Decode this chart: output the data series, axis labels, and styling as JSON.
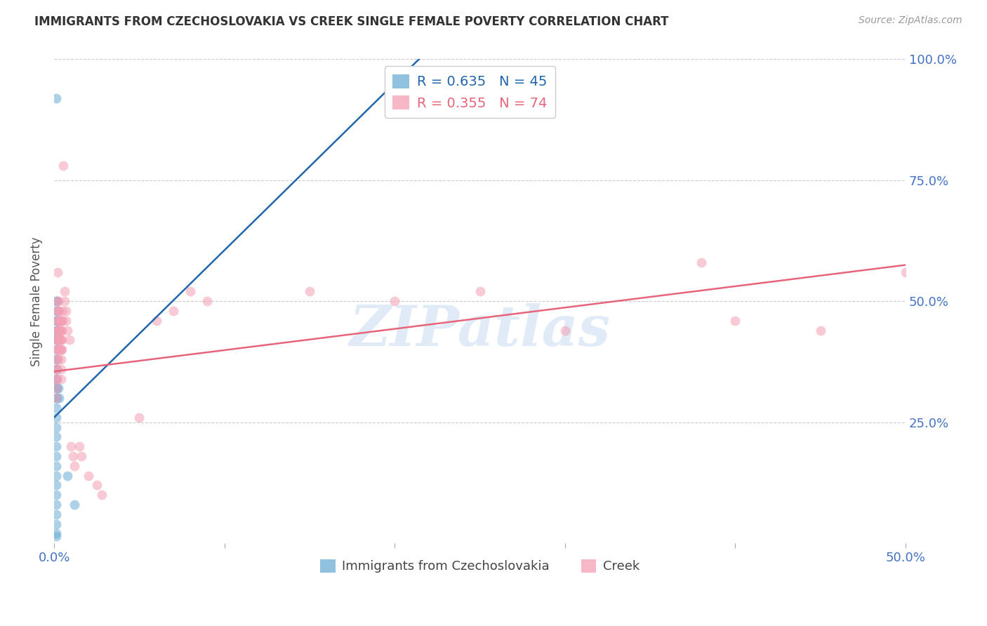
{
  "title": "IMMIGRANTS FROM CZECHOSLOVAKIA VS CREEK SINGLE FEMALE POVERTY CORRELATION CHART",
  "source": "Source: ZipAtlas.com",
  "ylabel": "Single Female Poverty",
  "xlim": [
    0,
    0.5
  ],
  "ylim": [
    0,
    1.0
  ],
  "xticks": [
    0.0,
    0.1,
    0.2,
    0.3,
    0.4,
    0.5
  ],
  "yticks": [
    0.0,
    0.25,
    0.5,
    0.75,
    1.0
  ],
  "xticklabels": [
    "0.0%",
    "",
    "",
    "",
    "",
    "50.0%"
  ],
  "yticklabels_right": [
    "",
    "25.0%",
    "50.0%",
    "75.0%",
    "100.0%"
  ],
  "legend_blue_r": "R = 0.635",
  "legend_blue_n": "N = 45",
  "legend_pink_r": "R = 0.355",
  "legend_pink_n": "N = 74",
  "legend_label_blue": "Immigrants from Czechoslovakia",
  "legend_label_pink": "Creek",
  "blue_color": "#6baed6",
  "pink_color": "#f4a0b5",
  "blue_line_color": "#2166ac",
  "pink_line_color": "#e8647a",
  "blue_scatter": [
    [
      0.001,
      0.92
    ],
    [
      0.001,
      0.5
    ],
    [
      0.001,
      0.48
    ],
    [
      0.001,
      0.46
    ],
    [
      0.001,
      0.44
    ],
    [
      0.001,
      0.42
    ],
    [
      0.001,
      0.4
    ],
    [
      0.001,
      0.38
    ],
    [
      0.001,
      0.36
    ],
    [
      0.001,
      0.34
    ],
    [
      0.001,
      0.32
    ],
    [
      0.001,
      0.3
    ],
    [
      0.001,
      0.28
    ],
    [
      0.001,
      0.26
    ],
    [
      0.001,
      0.24
    ],
    [
      0.001,
      0.22
    ],
    [
      0.001,
      0.2
    ],
    [
      0.001,
      0.18
    ],
    [
      0.001,
      0.16
    ],
    [
      0.001,
      0.14
    ],
    [
      0.001,
      0.12
    ],
    [
      0.001,
      0.1
    ],
    [
      0.001,
      0.08
    ],
    [
      0.001,
      0.06
    ],
    [
      0.001,
      0.04
    ],
    [
      0.001,
      0.02
    ],
    [
      0.001,
      0.015
    ],
    [
      0.0015,
      0.5
    ],
    [
      0.0015,
      0.46
    ],
    [
      0.0015,
      0.44
    ],
    [
      0.0015,
      0.42
    ],
    [
      0.0015,
      0.38
    ],
    [
      0.0015,
      0.36
    ],
    [
      0.0015,
      0.34
    ],
    [
      0.0015,
      0.32
    ],
    [
      0.0015,
      0.3
    ],
    [
      0.002,
      0.48
    ],
    [
      0.002,
      0.46
    ],
    [
      0.002,
      0.44
    ],
    [
      0.002,
      0.42
    ],
    [
      0.0025,
      0.32
    ],
    [
      0.003,
      0.3
    ],
    [
      0.008,
      0.14
    ],
    [
      0.012,
      0.08
    ],
    [
      0.21,
      0.92
    ]
  ],
  "pink_scatter": [
    [
      0.001,
      0.36
    ],
    [
      0.001,
      0.34
    ],
    [
      0.001,
      0.32
    ],
    [
      0.001,
      0.3
    ],
    [
      0.0015,
      0.44
    ],
    [
      0.0015,
      0.42
    ],
    [
      0.0015,
      0.4
    ],
    [
      0.0015,
      0.38
    ],
    [
      0.0015,
      0.36
    ],
    [
      0.0015,
      0.34
    ],
    [
      0.002,
      0.56
    ],
    [
      0.002,
      0.5
    ],
    [
      0.002,
      0.48
    ],
    [
      0.002,
      0.46
    ],
    [
      0.002,
      0.44
    ],
    [
      0.002,
      0.42
    ],
    [
      0.002,
      0.4
    ],
    [
      0.0025,
      0.5
    ],
    [
      0.0025,
      0.48
    ],
    [
      0.0025,
      0.46
    ],
    [
      0.0025,
      0.44
    ],
    [
      0.0025,
      0.42
    ],
    [
      0.0025,
      0.4
    ],
    [
      0.0025,
      0.38
    ],
    [
      0.003,
      0.48
    ],
    [
      0.003,
      0.46
    ],
    [
      0.003,
      0.44
    ],
    [
      0.003,
      0.42
    ],
    [
      0.003,
      0.4
    ],
    [
      0.0035,
      0.46
    ],
    [
      0.0035,
      0.44
    ],
    [
      0.0035,
      0.42
    ],
    [
      0.0035,
      0.4
    ],
    [
      0.004,
      0.46
    ],
    [
      0.004,
      0.44
    ],
    [
      0.004,
      0.42
    ],
    [
      0.004,
      0.4
    ],
    [
      0.004,
      0.38
    ],
    [
      0.004,
      0.36
    ],
    [
      0.004,
      0.34
    ],
    [
      0.0045,
      0.46
    ],
    [
      0.0045,
      0.44
    ],
    [
      0.0045,
      0.42
    ],
    [
      0.0045,
      0.4
    ],
    [
      0.005,
      0.48
    ],
    [
      0.005,
      0.46
    ],
    [
      0.0055,
      0.78
    ],
    [
      0.006,
      0.52
    ],
    [
      0.006,
      0.5
    ],
    [
      0.007,
      0.48
    ],
    [
      0.007,
      0.46
    ],
    [
      0.008,
      0.44
    ],
    [
      0.009,
      0.42
    ],
    [
      0.01,
      0.2
    ],
    [
      0.011,
      0.18
    ],
    [
      0.012,
      0.16
    ],
    [
      0.015,
      0.2
    ],
    [
      0.016,
      0.18
    ],
    [
      0.02,
      0.14
    ],
    [
      0.025,
      0.12
    ],
    [
      0.028,
      0.1
    ],
    [
      0.05,
      0.26
    ],
    [
      0.06,
      0.46
    ],
    [
      0.07,
      0.48
    ],
    [
      0.08,
      0.52
    ],
    [
      0.09,
      0.5
    ],
    [
      0.15,
      0.52
    ],
    [
      0.2,
      0.5
    ],
    [
      0.25,
      0.52
    ],
    [
      0.3,
      0.44
    ],
    [
      0.38,
      0.58
    ],
    [
      0.4,
      0.46
    ],
    [
      0.45,
      0.44
    ],
    [
      0.5,
      0.56
    ]
  ],
  "blue_line": {
    "x0": 0.0,
    "y0": 0.26,
    "x1": 0.22,
    "y1": 1.02
  },
  "pink_line": {
    "x0": 0.0,
    "y0": 0.355,
    "x1": 0.5,
    "y1": 0.575
  },
  "watermark_text": "ZIPatlas",
  "watermark_color": "#c5d8f0",
  "watermark_alpha": 0.5,
  "background_color": "#ffffff",
  "grid_color": "#cccccc",
  "title_color": "#333333",
  "axis_label_color": "#555555",
  "right_tick_color": "#4472c4",
  "bottom_tick_color": "#4472c4"
}
